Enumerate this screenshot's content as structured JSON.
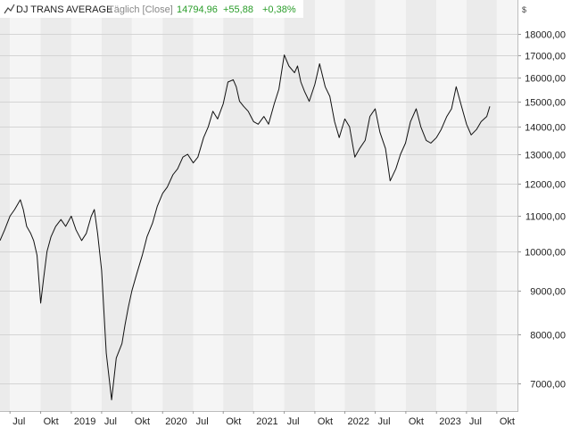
{
  "header": {
    "title": "DJ TRANS AVERAGE",
    "interval": "Täglich [Close]",
    "last_value": "14794,96",
    "change_abs": "+55,88",
    "change_pct": "+0,38%",
    "change_color": "#2a9d2a"
  },
  "currency_label": "$",
  "colors": {
    "line": "#111111",
    "band_light": "#f5f5f5",
    "band_dark": "#ebebeb",
    "grid": "#d4d4d4",
    "text": "#222222",
    "muted": "#888888"
  },
  "chart_data": {
    "type": "line",
    "title": "DJ TRANS AVERAGE",
    "xlabel": "",
    "ylabel": "",
    "y_scale": "log",
    "ylim": [
      6500,
      18700
    ],
    "xlim": [
      "2019-06-01",
      "2023-09-01"
    ],
    "grid": true,
    "y_ticks": [
      {
        "value": 7000,
        "label": "7000,00"
      },
      {
        "value": 8000,
        "label": "8000,00"
      },
      {
        "value": 9000,
        "label": "9000,00"
      },
      {
        "value": 10000,
        "label": "10000,00"
      },
      {
        "value": 11000,
        "label": "11000,00"
      },
      {
        "value": 12000,
        "label": "12000,00"
      },
      {
        "value": 13000,
        "label": "13000,00"
      },
      {
        "value": 14000,
        "label": "14000,00"
      },
      {
        "value": 15000,
        "label": "15000,00"
      },
      {
        "value": 16000,
        "label": "16000,00"
      },
      {
        "value": 17000,
        "label": "17000,00"
      },
      {
        "value": 18000,
        "label": "18000,00"
      }
    ],
    "x_ticks": [
      {
        "date": "2019-07-01",
        "label": "Jul"
      },
      {
        "date": "2019-10-01",
        "label": "Okt"
      },
      {
        "date": "2020-01-01",
        "label": "2019"
      },
      {
        "date": "2020-04-01",
        "label": "Jul"
      },
      {
        "date": "2020-07-01",
        "label": "Okt"
      },
      {
        "date": "2020-10-01",
        "label": "2020"
      },
      {
        "date": "2021-01-01",
        "label": "Jul"
      },
      {
        "date": "2021-04-01",
        "label": "Okt"
      },
      {
        "date": "2021-07-01",
        "label": "2021"
      },
      {
        "date": "2021-10-01",
        "label": "Jul"
      },
      {
        "date": "2022-01-01",
        "label": "Okt"
      },
      {
        "date": "2022-04-01",
        "label": "2022"
      },
      {
        "date": "2022-07-01",
        "label": "Jul"
      },
      {
        "date": "2022-10-01",
        "label": "Okt"
      },
      {
        "date": "2023-01-01",
        "label": "2023"
      },
      {
        "date": "2023-04-01",
        "label": "Jul"
      },
      {
        "date": "2023-07-01",
        "label": "Okt"
      }
    ],
    "series": [
      {
        "x": [
          "2019-06-01",
          "2019-06-15",
          "2019-07-01",
          "2019-07-15",
          "2019-08-01",
          "2019-08-10",
          "2019-08-20",
          "2019-09-01",
          "2019-09-10",
          "2019-09-20",
          "2019-10-01",
          "2019-10-10",
          "2019-10-20",
          "2019-11-01",
          "2019-11-15",
          "2019-12-01",
          "2019-12-15",
          "2020-01-01",
          "2020-01-15",
          "2020-02-01",
          "2020-02-15",
          "2020-03-01",
          "2020-03-10",
          "2020-03-20",
          "2020-04-01",
          "2020-04-15",
          "2020-05-01",
          "2020-05-15",
          "2020-06-01",
          "2020-06-10",
          "2020-06-20",
          "2020-07-01",
          "2020-07-15",
          "2020-08-01",
          "2020-08-15",
          "2020-09-01",
          "2020-09-15",
          "2020-10-01",
          "2020-10-15",
          "2020-11-01",
          "2020-11-15",
          "2020-12-01",
          "2020-12-15",
          "2021-01-01",
          "2021-01-15",
          "2021-02-01",
          "2021-02-15",
          "2021-03-01",
          "2021-03-15",
          "2021-04-01",
          "2021-04-15",
          "2021-05-01",
          "2021-05-10",
          "2021-05-20",
          "2021-06-01",
          "2021-06-15",
          "2021-07-01",
          "2021-07-15",
          "2021-08-01",
          "2021-08-15",
          "2021-09-01",
          "2021-09-15",
          "2021-10-01",
          "2021-10-15",
          "2021-11-01",
          "2021-11-10",
          "2021-11-20",
          "2021-12-01",
          "2021-12-15",
          "2022-01-01",
          "2022-01-15",
          "2022-02-01",
          "2022-02-15",
          "2022-03-01",
          "2022-03-15",
          "2022-04-01",
          "2022-04-15",
          "2022-05-01",
          "2022-05-15",
          "2022-06-01",
          "2022-06-15",
          "2022-07-01",
          "2022-07-15",
          "2022-08-01",
          "2022-08-15",
          "2022-09-01",
          "2022-09-15",
          "2022-09-30",
          "2022-10-15",
          "2022-11-01",
          "2022-11-15",
          "2022-12-01",
          "2022-12-15",
          "2023-01-01",
          "2023-01-15",
          "2023-02-01",
          "2023-02-15",
          "2023-03-01",
          "2023-03-15",
          "2023-04-01",
          "2023-04-15",
          "2023-05-01",
          "2023-05-15",
          "2023-06-01",
          "2023-06-10"
        ],
        "values": [
          10300,
          10600,
          11000,
          11200,
          11500,
          11200,
          10700,
          10500,
          10300,
          9900,
          8700,
          9300,
          10000,
          10400,
          10700,
          10900,
          10700,
          11000,
          10600,
          10300,
          10500,
          11000,
          11200,
          10500,
          9500,
          7600,
          6700,
          7500,
          7800,
          8200,
          8600,
          9000,
          9400,
          9900,
          10400,
          10800,
          11300,
          11700,
          11900,
          12300,
          12500,
          12900,
          13000,
          12700,
          12900,
          13600,
          14000,
          14600,
          14300,
          14900,
          15800,
          15900,
          15600,
          15000,
          14800,
          14600,
          14200,
          14100,
          14400,
          14100,
          14900,
          15500,
          17000,
          16500,
          16200,
          16500,
          15800,
          15400,
          15000,
          15700,
          16600,
          15600,
          15200,
          14200,
          13600,
          14300,
          14000,
          12900,
          13200,
          13500,
          14400,
          14700,
          13800,
          13200,
          12100,
          12500,
          13000,
          13400,
          14200,
          14700,
          14000,
          13500,
          13400,
          13600,
          13900,
          14400,
          14700,
          15600,
          14900,
          14100,
          13700,
          13900,
          14200,
          14400,
          14794.96
        ]
      }
    ]
  }
}
